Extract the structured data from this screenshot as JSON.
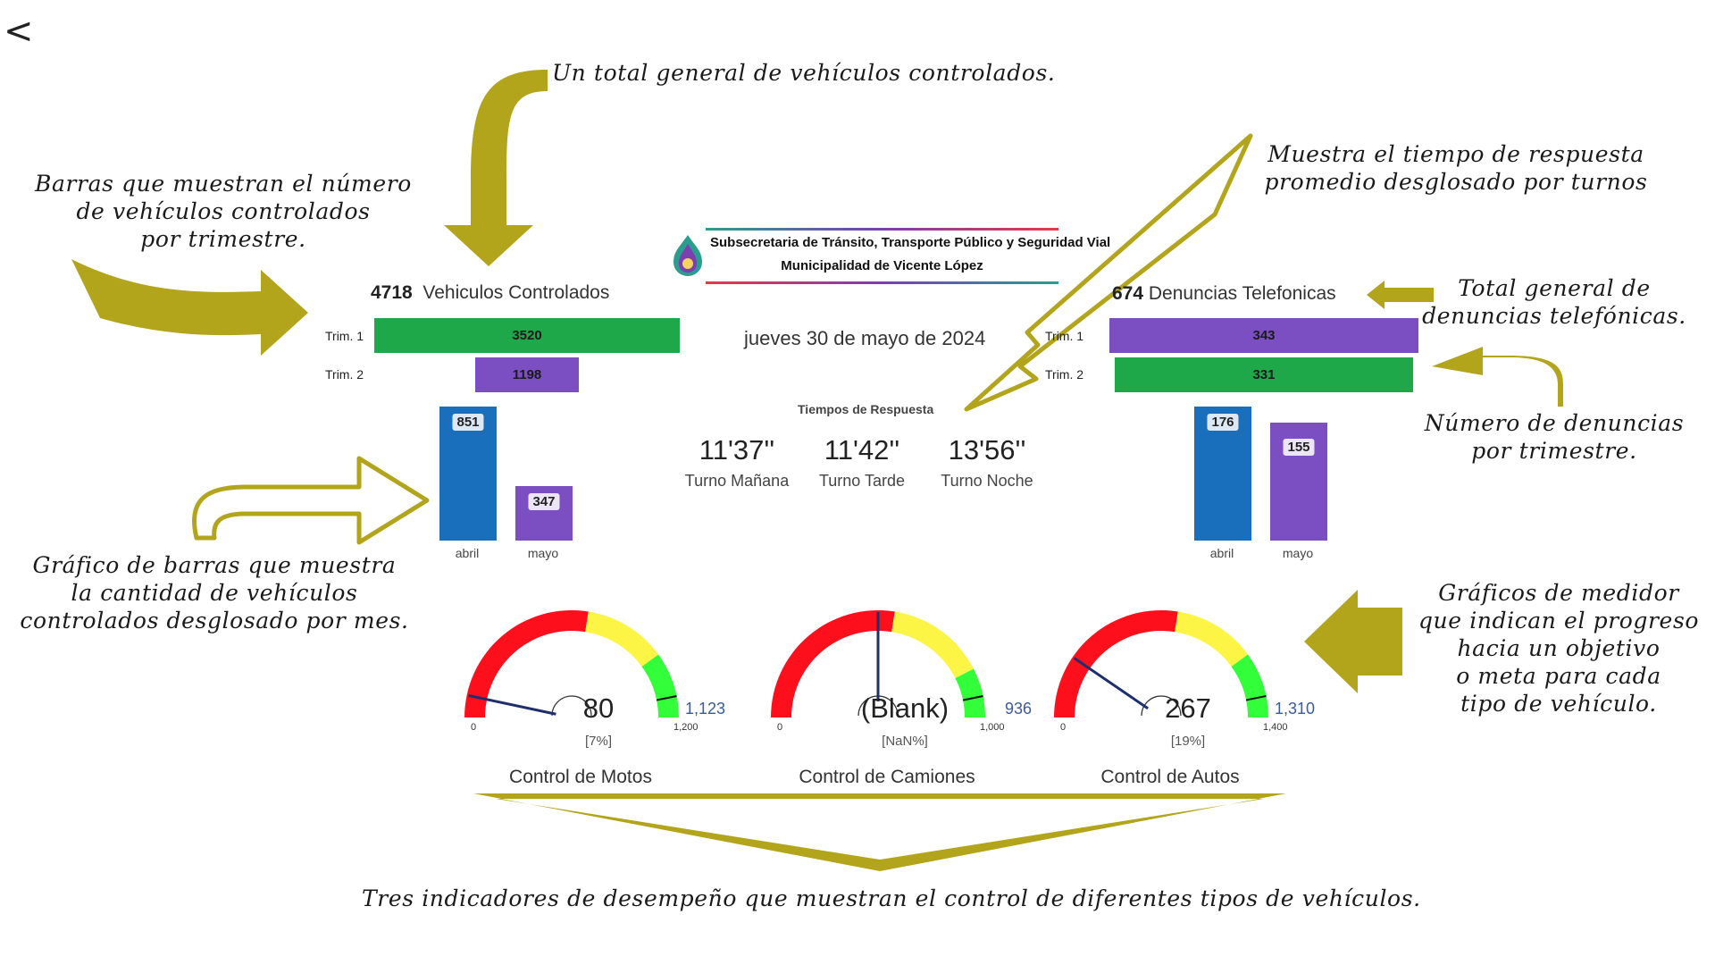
{
  "nav": {
    "back_label": "<"
  },
  "header": {
    "logo_line1": "Subsecretaria de Tránsito, Transporte Público y Seguridad Vial",
    "logo_line2": "Municipalidad de Vicente López",
    "date": "jueves 30 de mayo de 2024"
  },
  "annotations": {
    "total_vehicles": "Un total general de vehículos controlados.",
    "bars_trim_1": "Barras que muestran el número",
    "bars_trim_2": "de vehículos controlados",
    "bars_trim_3": "por trimestre.",
    "response_1": "Muestra el tiempo de respuesta",
    "response_2": "promedio desglosado por turnos",
    "total_calls_1": "Total general de",
    "total_calls_2": "denuncias telefónicas.",
    "calls_trim_1": "Número de denuncias",
    "calls_trim_2": "por trimestre.",
    "month_bars_1": "Gráfico de barras que muestra",
    "month_bars_2": "la cantidad de vehículos",
    "month_bars_3": "controlados desglosado por mes.",
    "gauges_1": "Gráficos de medidor",
    "gauges_2": "que indican el progreso",
    "gauges_3": "hacia un objetivo",
    "gauges_4": "o meta para cada",
    "gauges_5": "tipo de vehículo.",
    "kpis": "Tres indicadores de desempeño que muestran el control de diferentes tipos de vehículos."
  },
  "vehicles": {
    "total": "4718",
    "label": "Vehiculos Controlados"
  },
  "calls": {
    "total": "674",
    "label": "Denuncias Telefonicas"
  },
  "response_times": {
    "title": "Tiempos de Respuesta",
    "items": [
      {
        "time": "11'37''",
        "label": "Turno Mañana"
      },
      {
        "time": "11'42''",
        "label": "Turno Tarde"
      },
      {
        "time": "13'56''",
        "label": "Turno Noche"
      }
    ]
  },
  "colors": {
    "green": "#1fa84a",
    "purple": "#7b4fc1",
    "blue": "#1a6fbd",
    "red": "#fe0f1c",
    "yellow": "#fcf545",
    "lime": "#33fe3a",
    "olive": "#b3a51b"
  },
  "chart_data": [
    {
      "type": "bar",
      "orientation": "horizontal",
      "title": "Vehiculos Controlados",
      "categories": [
        "Trim. 1",
        "Trim. 2"
      ],
      "values": [
        3520,
        1198
      ],
      "labels": [
        "3520",
        "1198"
      ],
      "colors": [
        "#1fa84a",
        "#7b4fc1"
      ]
    },
    {
      "type": "bar",
      "categories": [
        "abril",
        "mayo"
      ],
      "values": [
        851,
        347
      ],
      "labels": [
        "851",
        "347"
      ],
      "colors": [
        "#1a6fbd",
        "#7b4fc1"
      ]
    },
    {
      "type": "bar",
      "orientation": "horizontal",
      "title": "Denuncias Telefonicas",
      "categories": [
        "Trim. 1",
        "Trim. 2"
      ],
      "values": [
        343,
        331
      ],
      "labels": [
        "343",
        "331"
      ],
      "colors": [
        "#7b4fc1",
        "#1fa84a"
      ]
    },
    {
      "type": "bar",
      "categories": [
        "abril",
        "mayo"
      ],
      "values": [
        176,
        155
      ],
      "labels": [
        "176",
        "155"
      ],
      "colors": [
        "#1a6fbd",
        "#7b4fc1"
      ]
    },
    {
      "type": "gauge",
      "title": "Control de Motos",
      "value": 80,
      "value_label": "80",
      "percent_label": "[7%]",
      "min": 0,
      "min_label": "0",
      "max": 1200,
      "max_label": "1,200",
      "target": 1123,
      "target_label": "1,123",
      "bands": [
        {
          "to": 0.55,
          "color": "#fe0f1c"
        },
        {
          "to": 0.8,
          "color": "#fcf545"
        },
        {
          "to": 1.0,
          "color": "#33fe3a"
        }
      ]
    },
    {
      "type": "gauge",
      "title": "Control de Camiones",
      "value": null,
      "value_label": "(Blank)",
      "percent_label": "[NaN%]",
      "min": 0,
      "min_label": "0",
      "max": 1000,
      "max_label": "1,000",
      "target": 936,
      "target_label": "936",
      "bands": [
        {
          "to": 0.55,
          "color": "#fe0f1c"
        },
        {
          "to": 0.85,
          "color": "#fcf545"
        },
        {
          "to": 1.0,
          "color": "#33fe3a"
        }
      ]
    },
    {
      "type": "gauge",
      "title": "Control de Autos",
      "value": 267,
      "value_label": "267",
      "percent_label": "[19%]",
      "min": 0,
      "min_label": "0",
      "max": 1400,
      "max_label": "1,400",
      "target": 1310,
      "target_label": "1,310",
      "bands": [
        {
          "to": 0.55,
          "color": "#fe0f1c"
        },
        {
          "to": 0.8,
          "color": "#fcf545"
        },
        {
          "to": 1.0,
          "color": "#33fe3a"
        }
      ]
    }
  ]
}
